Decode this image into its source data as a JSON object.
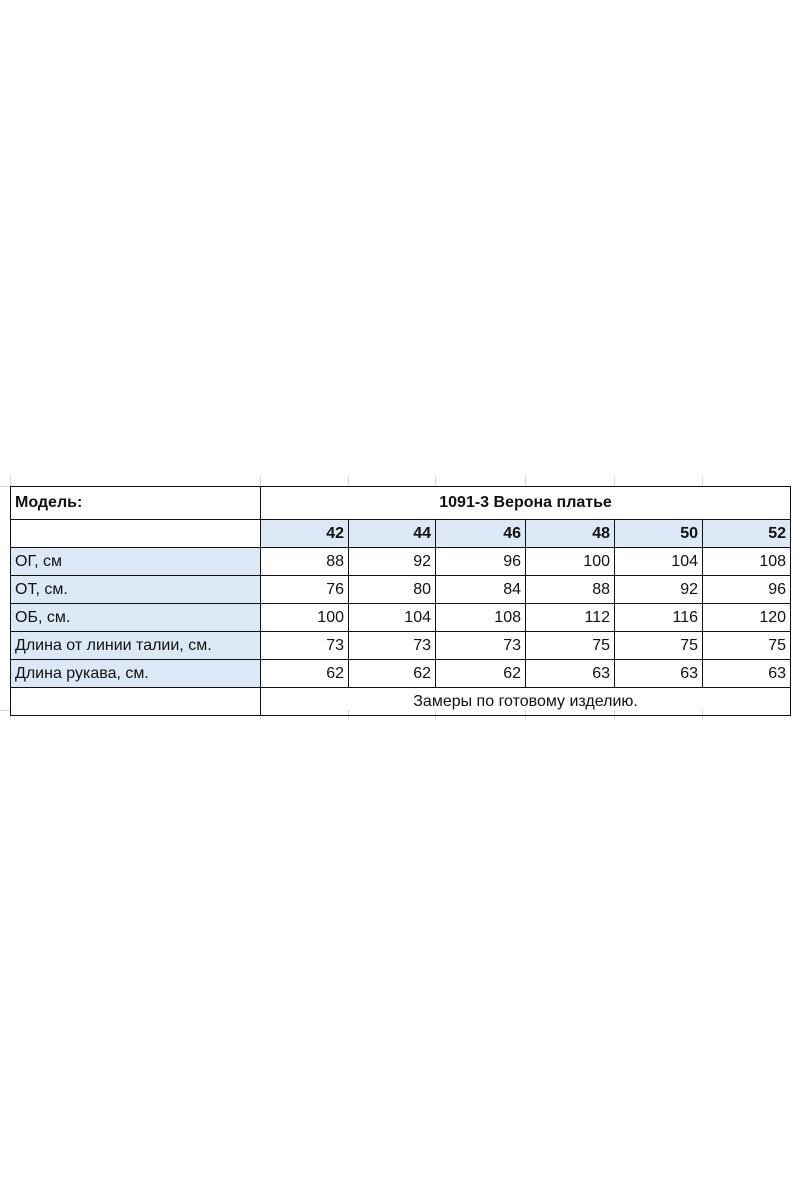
{
  "model_label": "Модель:",
  "title": "1091-3 Верона платье",
  "sizes": [
    "42",
    "44",
    "46",
    "48",
    "50",
    "52"
  ],
  "rows": [
    {
      "label": "ОГ, см",
      "values": [
        "88",
        "92",
        "96",
        "100",
        "104",
        "108"
      ]
    },
    {
      "label": "ОТ, см.",
      "values": [
        "76",
        "80",
        "84",
        "88",
        "92",
        "96"
      ]
    },
    {
      "label": "ОБ, см.",
      "values": [
        "100",
        "104",
        "108",
        "112",
        "116",
        "120"
      ]
    },
    {
      "label": "Длина от линии талии, см.",
      "values": [
        "73",
        "73",
        "73",
        "75",
        "75",
        "75"
      ]
    },
    {
      "label": "Длина рукава, см.",
      "values": [
        "62",
        "62",
        "62",
        "63",
        "63",
        "63"
      ]
    }
  ],
  "note": "Замеры по готовому изделию.",
  "colors": {
    "header_fill": "#dce8f5",
    "border": "#111111",
    "background": "#ffffff"
  }
}
